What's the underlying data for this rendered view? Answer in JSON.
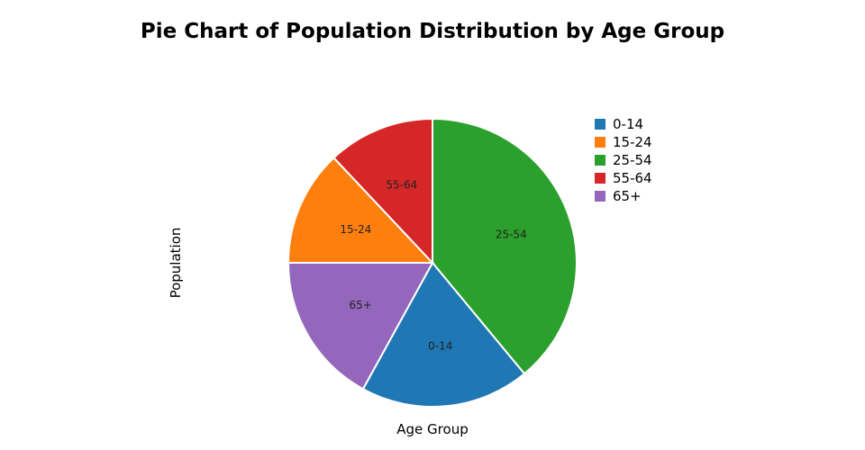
{
  "chart_data": {
    "type": "pie",
    "title": "Pie Chart of Population Distribution by Age Group",
    "xlabel": "Age Group",
    "ylabel": "Population",
    "legend_position": "top-right",
    "categories": [
      "25-54",
      "0-14",
      "65+",
      "15-24",
      "55-64"
    ],
    "values": [
      39,
      19,
      17,
      13,
      12
    ],
    "colors": [
      "#2ca02c",
      "#1f77b4",
      "#9467bd",
      "#ff7f0e",
      "#d62728"
    ]
  },
  "legend": {
    "items": [
      {
        "label": "0-14",
        "color": "#1f77b4"
      },
      {
        "label": "15-24",
        "color": "#ff7f0e"
      },
      {
        "label": "25-54",
        "color": "#2ca02c"
      },
      {
        "label": "55-64",
        "color": "#d62728"
      },
      {
        "label": "65+",
        "color": "#9467bd"
      }
    ]
  }
}
